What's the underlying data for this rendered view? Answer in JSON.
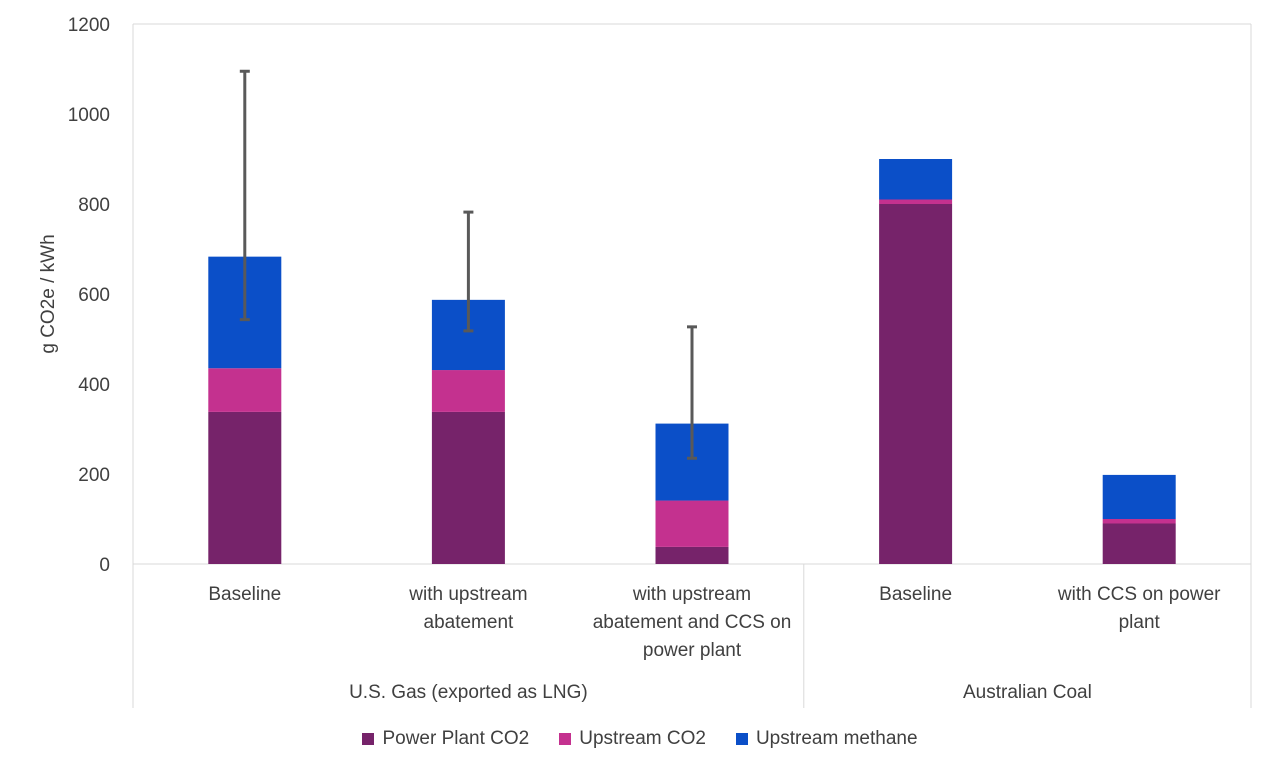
{
  "chart_data": {
    "type": "bar",
    "stacked": true,
    "ylabel": "g CO2e / kWh",
    "ylim": [
      0,
      1200
    ],
    "yticks": [
      "0",
      "200",
      "400",
      "600",
      "800",
      "1000",
      "1200"
    ],
    "ytick_values": [
      0,
      200,
      400,
      600,
      800,
      1000,
      1200
    ],
    "grid": false,
    "legend_position": "bottom",
    "categories": [
      "Baseline",
      "with upstream abatement",
      "with upstream abatement and CCS on power plant",
      "Baseline",
      "with CCS on power plant"
    ],
    "category_lines": [
      [
        "Baseline"
      ],
      [
        "with upstream",
        "abatement"
      ],
      [
        "with upstream",
        "abatement and CCS on",
        "power plant"
      ],
      [
        "Baseline"
      ],
      [
        "with CCS on power",
        "plant"
      ]
    ],
    "groups": [
      {
        "label": "U.S. Gas (exported as LNG)",
        "categories": [
          0,
          1,
          2
        ]
      },
      {
        "label": "Australian Coal",
        "categories": [
          3,
          4
        ]
      }
    ],
    "series": [
      {
        "name": "Power Plant CO2",
        "color": "#76236A",
        "values": [
          338,
          338,
          38,
          800,
          90
        ]
      },
      {
        "name": "Upstream CO2",
        "color": "#C4318F",
        "values": [
          97,
          93,
          103,
          10,
          10
        ]
      },
      {
        "name": "Upstream methane",
        "color": "#0B4FC8",
        "values": [
          248,
          156,
          171,
          90,
          98
        ]
      }
    ],
    "error_bars": [
      {
        "category": 0,
        "low": 543,
        "high": 1095
      },
      {
        "category": 1,
        "low": 518,
        "high": 782
      },
      {
        "category": 2,
        "low": 235,
        "high": 527
      }
    ],
    "error_bar_color": "#595959"
  }
}
